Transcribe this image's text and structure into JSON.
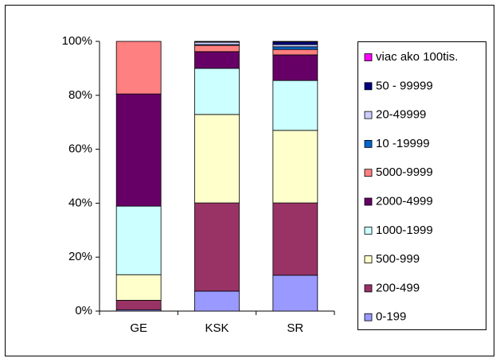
{
  "chart_data": {
    "type": "stacked_bar_100",
    "categories": [
      "GE",
      "KSK",
      "SR"
    ],
    "series": [
      {
        "name": "0-199",
        "color": "#9999ff",
        "values": [
          0.5,
          7.4,
          13.3
        ]
      },
      {
        "name": "200-499",
        "color": "#993366",
        "values": [
          3.5,
          32.7,
          26.8
        ]
      },
      {
        "name": "500-999",
        "color": "#ffffcc",
        "values": [
          9.5,
          32.8,
          26.9
        ]
      },
      {
        "name": "1000-1999",
        "color": "#ccffff",
        "values": [
          25.4,
          17.1,
          18.5
        ]
      },
      {
        "name": "2000-4999",
        "color": "#660066",
        "values": [
          41.6,
          6.2,
          9.5
        ]
      },
      {
        "name": "5000-9999",
        "color": "#ff8080",
        "values": [
          19.5,
          2.3,
          2.0
        ]
      },
      {
        "name": "10 -19999",
        "color": "#0066cc",
        "values": [
          0,
          0.3,
          1.0
        ]
      },
      {
        "name": "20-49999",
        "color": "#ccccff",
        "values": [
          0,
          0.9,
          0.8
        ]
      },
      {
        "name": "50 - 99999",
        "color": "#000080",
        "values": [
          0,
          0.2,
          1.0
        ]
      },
      {
        "name": "viac ako 100tis.",
        "color": "#ff00ff",
        "values": [
          0,
          0.1,
          0.2
        ]
      }
    ],
    "ylim": [
      0,
      100
    ],
    "yticks": [
      {
        "value": 0,
        "label": "0%"
      },
      {
        "value": 20,
        "label": "20%"
      },
      {
        "value": 40,
        "label": "40%"
      },
      {
        "value": 60,
        "label": "60%"
      },
      {
        "value": 80,
        "label": "80%"
      },
      {
        "value": 100,
        "label": "100%"
      }
    ],
    "legend": "right"
  }
}
